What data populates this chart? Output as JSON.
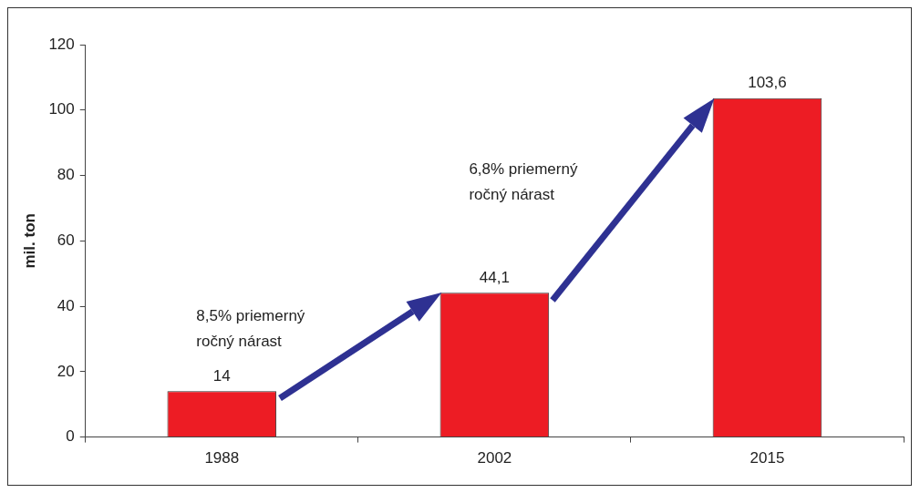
{
  "chart_data": {
    "type": "bar",
    "ylabel": "mil. ton",
    "categories": [
      "1988",
      "2002",
      "2015"
    ],
    "values": [
      14,
      44.1,
      103.6
    ],
    "value_labels": [
      "14",
      "44,1",
      "103,6"
    ],
    "color": "#ed1c24",
    "ylim": [
      0,
      120
    ],
    "yticks": [
      0,
      20,
      40,
      60,
      80,
      100,
      120
    ],
    "grid": false,
    "legend": false,
    "annotations": [
      "8,5% priemerný\nročný nárast",
      "6,8% priemerný\nročný nárast"
    ]
  }
}
